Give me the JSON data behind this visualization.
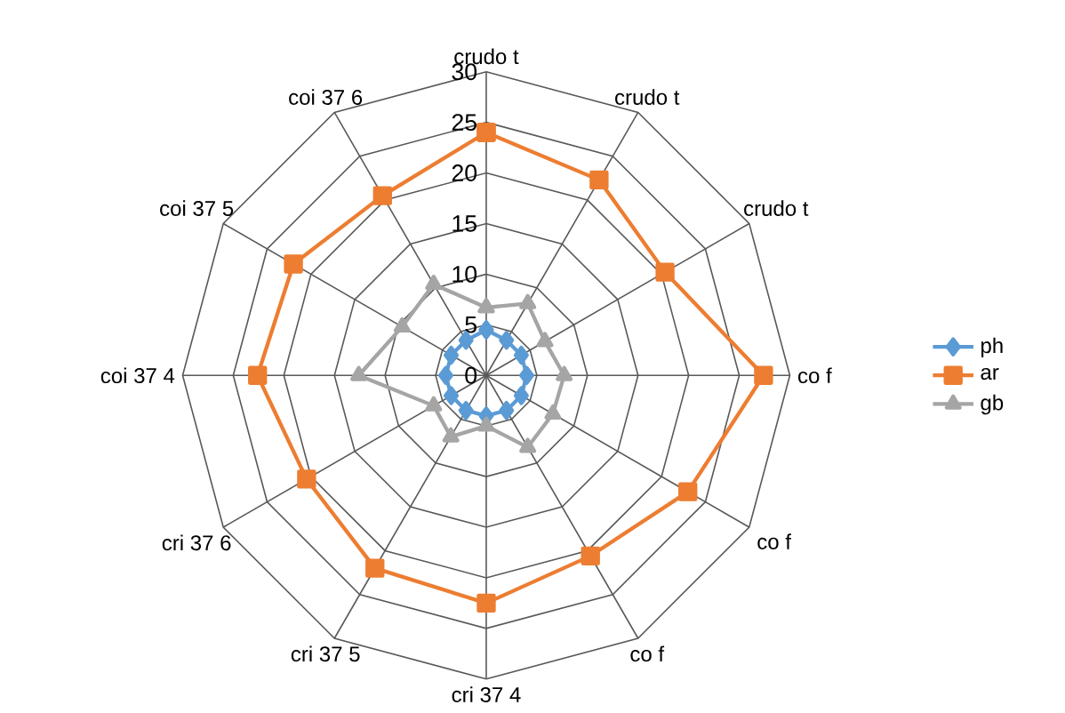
{
  "chart_data": {
    "type": "radar",
    "categories": [
      "crudo t",
      "crudo t",
      "crudo t",
      "co f",
      "co f",
      "co f",
      "cri 37 4",
      "cri 37 5",
      "cri 37 6",
      "coi 37 4",
      "coi 37 5",
      "coi 37 6"
    ],
    "series": [
      {
        "name": "ph",
        "color": "#5b9bd5",
        "marker": "diamond",
        "values": [
          4.5,
          4,
          4,
          4,
          4,
          4,
          4,
          4,
          4,
          4,
          4,
          4
        ]
      },
      {
        "name": "ar",
        "color": "#ed7d31",
        "marker": "square",
        "values": [
          24,
          22.3,
          20.4,
          27.4,
          23,
          20.6,
          22.5,
          22,
          20.5,
          22.6,
          22,
          20.5
        ]
      },
      {
        "name": "gb",
        "color": "#a5a5a5",
        "marker": "triangle",
        "values": [
          6.7,
          8.2,
          6.7,
          7.7,
          7.6,
          8.2,
          5,
          7,
          6,
          12.6,
          9.6,
          10.4
        ]
      }
    ],
    "ylim": [
      0,
      30
    ],
    "yticks": [
      0,
      5,
      10,
      15,
      20,
      25,
      30
    ],
    "grid": true,
    "legend": "right"
  }
}
